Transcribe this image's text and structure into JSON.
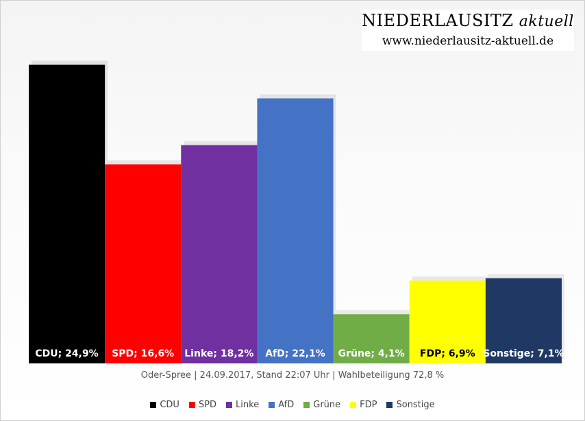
{
  "brand": {
    "name": "NIEDERLAUSITZ",
    "name_suffix": "aktuell",
    "url": "www.niederlausitz-aktuell.de"
  },
  "caption": "Oder-Spree | 24.09.2017, Stand 22:07 Uhr | Wahlbeteiligung 72,8 %",
  "chart_data": {
    "type": "bar",
    "title": "",
    "xlabel": "",
    "ylabel": "",
    "ylim": [
      0,
      25.5
    ],
    "grid": false,
    "legend": "bottom",
    "categories": [
      "CDU",
      "SPD",
      "Linke",
      "AfD",
      "Grüne",
      "FDP",
      "Sonstige"
    ],
    "values": [
      24.9,
      16.6,
      18.2,
      22.1,
      4.1,
      6.9,
      7.1
    ],
    "labels": [
      "CDU; 24,9%",
      "SPD; 16,6%",
      "Linke; 18,2%",
      "AfD; 22,1%",
      "Grüne; 4,1%",
      "FDP; 6,9%",
      "Sonstige; 7,1%"
    ],
    "colors": [
      "#000000",
      "#ff0000",
      "#7030a0",
      "#4472c4",
      "#70ad47",
      "#ffff00",
      "#203864"
    ],
    "label_colors": [
      "#ffffff",
      "#ffffff",
      "#ffffff",
      "#ffffff",
      "#ffffff",
      "#000000",
      "#ffffff"
    ]
  }
}
